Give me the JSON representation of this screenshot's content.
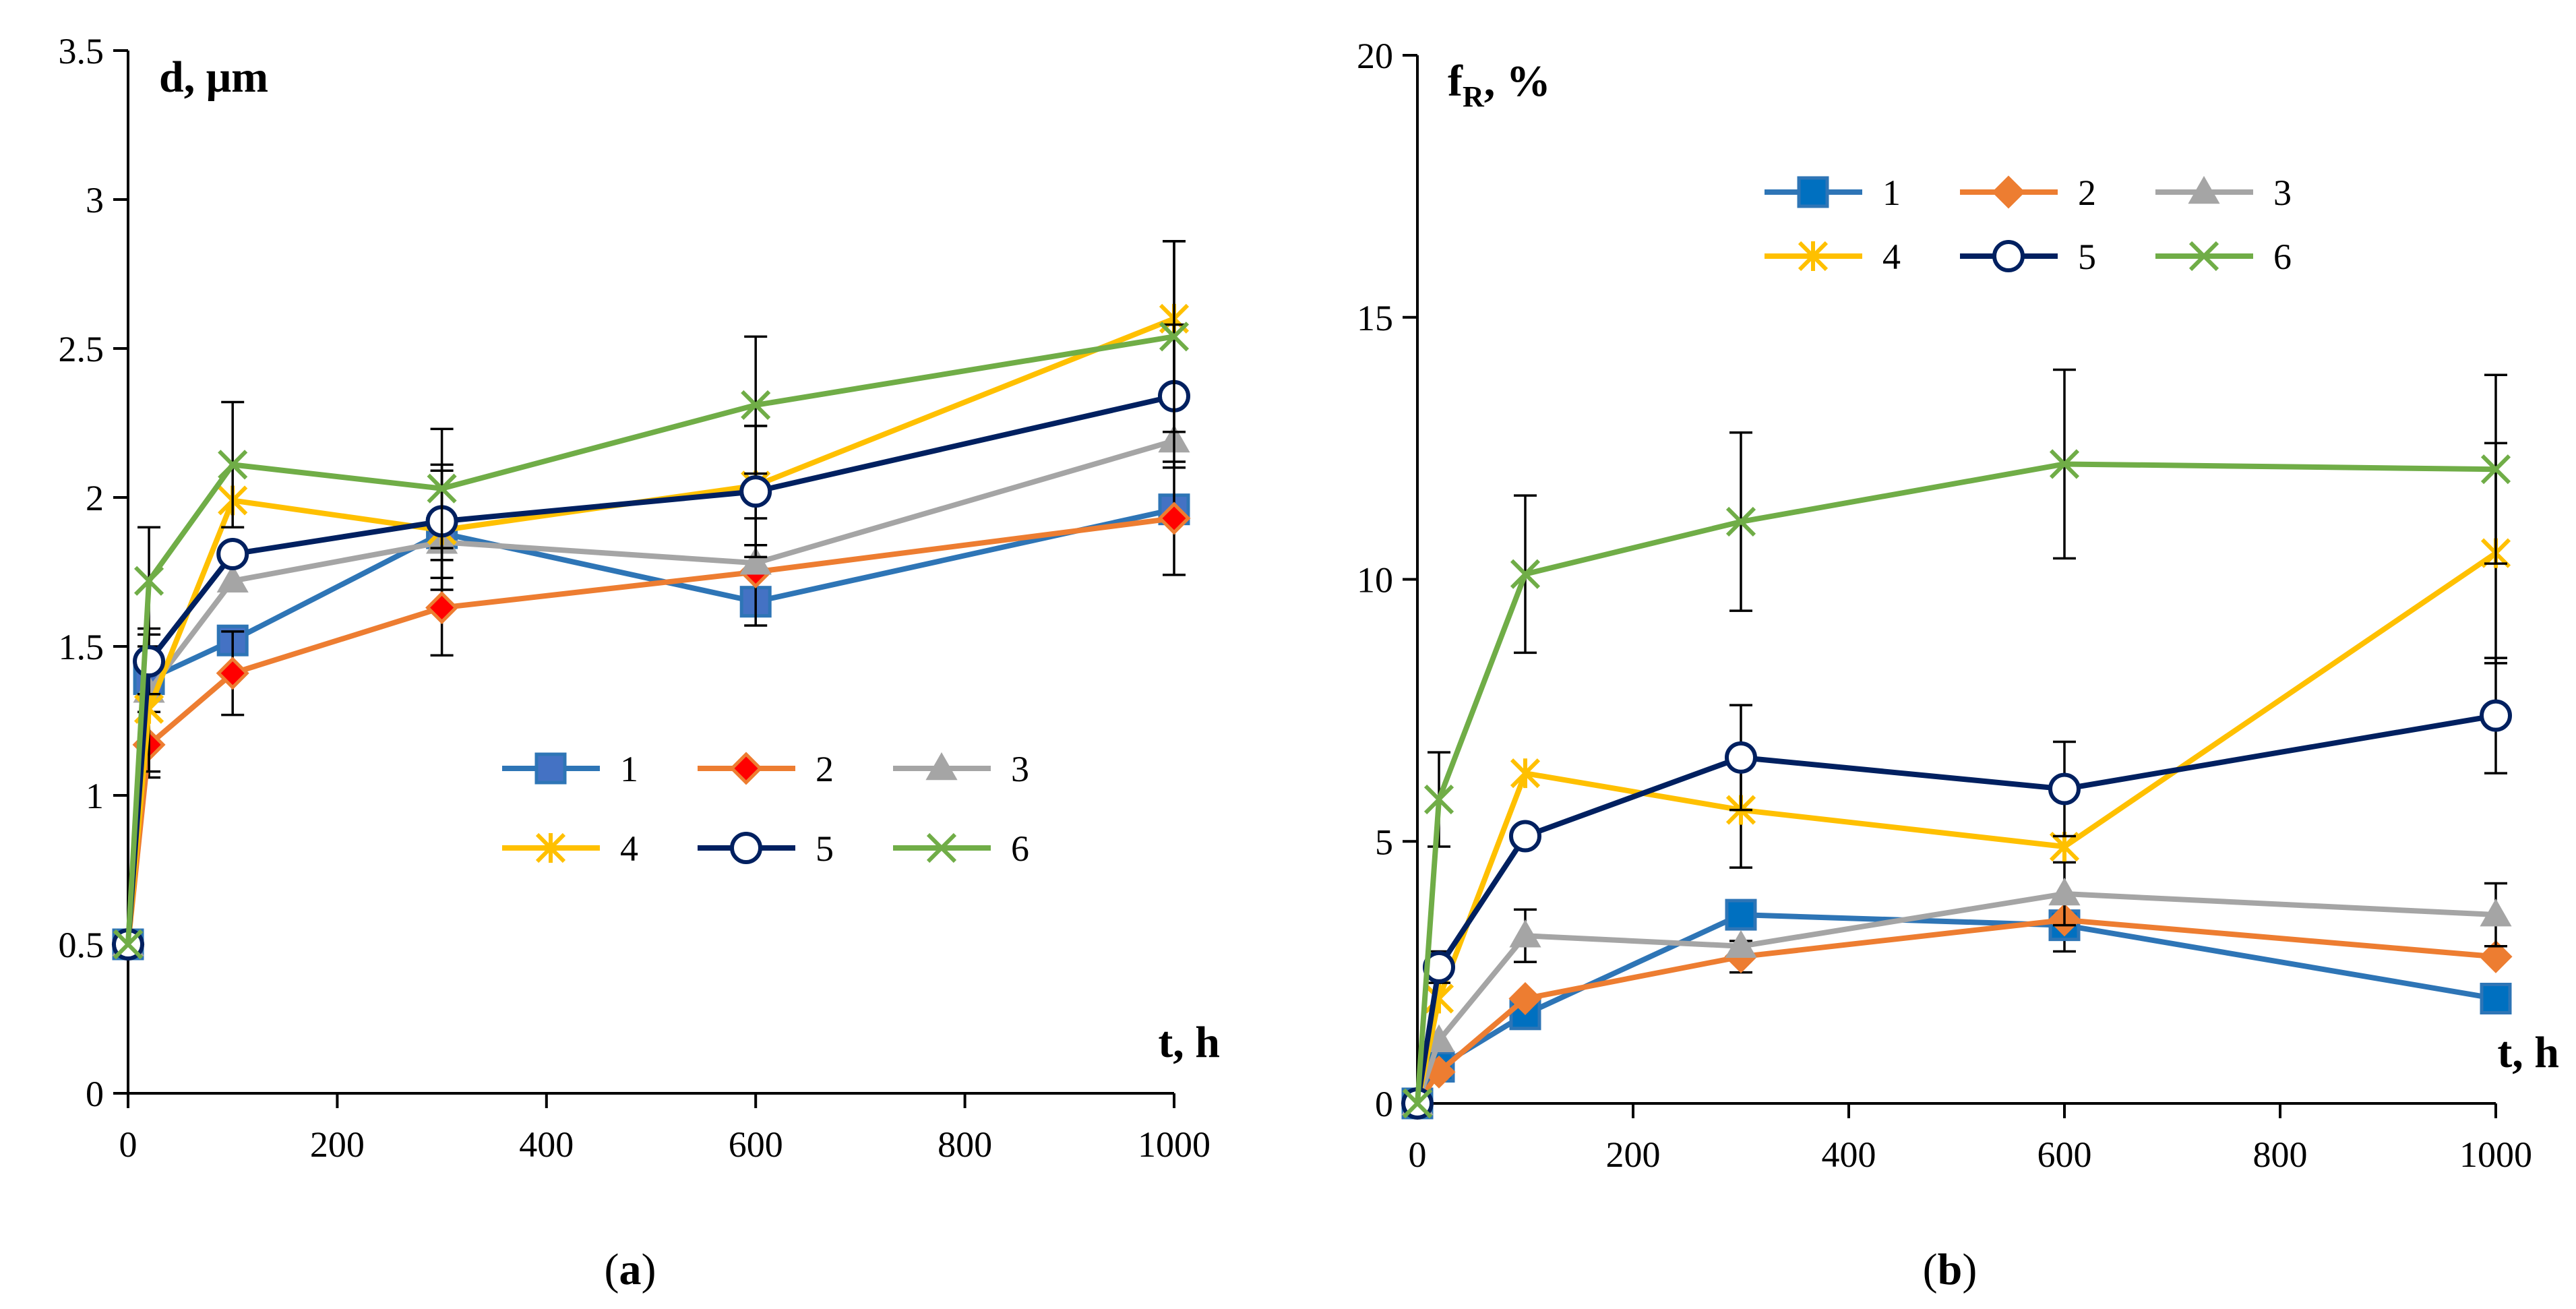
{
  "chart_data": [
    {
      "type": "line",
      "panel_label": "a",
      "ylabel": "d, μm",
      "xlabel": "t, h",
      "xlim": [
        0,
        1000
      ],
      "ylim": [
        0,
        3.5
      ],
      "xticks": [
        "0",
        "200",
        "400",
        "600",
        "800",
        "1000"
      ],
      "yticks": [
        "0",
        "0.5",
        "1",
        "1.5",
        "2",
        "2.5",
        "3",
        "3.5"
      ],
      "legend_position": "center-right",
      "x": [
        0,
        20,
        100,
        300,
        600,
        1000
      ],
      "series": [
        {
          "name": "1",
          "color": "#2e75b6",
          "fill": "#4472c4",
          "marker": "square",
          "values": [
            0.5,
            1.39,
            1.52,
            1.88,
            1.65,
            1.96
          ],
          "errors": [
            0,
            0,
            0,
            0,
            0,
            0
          ]
        },
        {
          "name": "2",
          "color": "#ed7d31",
          "fill": "#ff0000",
          "marker": "diamond",
          "values": [
            0.5,
            1.17,
            1.41,
            1.63,
            1.75,
            1.93
          ],
          "errors": [
            0,
            0.11,
            0.14,
            0.16,
            0.18,
            0.19
          ]
        },
        {
          "name": "3",
          "color": "#a5a5a5",
          "fill": "#a5a5a5",
          "marker": "triangle",
          "values": [
            0.5,
            1.35,
            1.72,
            1.85,
            1.78,
            2.19
          ],
          "errors": [
            0,
            0,
            0,
            0,
            0,
            0
          ]
        },
        {
          "name": "4",
          "color": "#ffc000",
          "fill": "#ffc000",
          "marker": "star",
          "values": [
            0.5,
            1.29,
            1.99,
            1.89,
            2.04,
            2.6
          ],
          "errors": [
            0,
            0.21,
            0,
            0.2,
            0.2,
            0.26
          ]
        },
        {
          "name": "5",
          "color": "#002060",
          "fill": "#ffffff",
          "marker": "circle",
          "values": [
            0.5,
            1.45,
            1.81,
            1.92,
            2.02,
            2.34
          ],
          "errors": [
            0,
            0.11,
            0,
            0.19,
            0.22,
            0.24
          ]
        },
        {
          "name": "6",
          "color": "#70ad47",
          "fill": "#70ad47",
          "marker": "x",
          "values": [
            0.5,
            1.72,
            2.11,
            2.03,
            2.31,
            2.54
          ],
          "errors": [
            0,
            0.18,
            0.21,
            0.2,
            0.23,
            0.32
          ]
        }
      ]
    },
    {
      "type": "line",
      "panel_label": "b",
      "ylabel_main": "f",
      "ylabel_sub": "R",
      "ylabel_rest": ", %",
      "xlabel": "t, h",
      "xlim": [
        0,
        1000
      ],
      "ylim": [
        0,
        20
      ],
      "xticks": [
        "0",
        "200",
        "400",
        "600",
        "800",
        "1000"
      ],
      "yticks": [
        "0",
        "5",
        "10",
        "15",
        "20"
      ],
      "legend_position": "top-center",
      "x": [
        0,
        20,
        100,
        300,
        600,
        1000
      ],
      "series": [
        {
          "name": "1",
          "color": "#2e75b6",
          "fill": "#0070c0",
          "marker": "square",
          "values": [
            0,
            0.7,
            1.7,
            3.6,
            3.4,
            2.0
          ],
          "errors": [
            0,
            0,
            0,
            0,
            0.5,
            0
          ]
        },
        {
          "name": "2",
          "color": "#ed7d31",
          "fill": "#ed7d31",
          "marker": "diamond",
          "values": [
            0,
            0.6,
            2.0,
            2.8,
            3.5,
            2.8
          ],
          "errors": [
            0,
            0,
            0,
            0.3,
            0,
            0
          ]
        },
        {
          "name": "3",
          "color": "#a5a5a5",
          "fill": "#a5a5a5",
          "marker": "triangle",
          "values": [
            0,
            1.2,
            3.2,
            3.0,
            4.0,
            3.6
          ],
          "errors": [
            0,
            0,
            0.5,
            0,
            0.6,
            0.6
          ]
        },
        {
          "name": "4",
          "color": "#ffc000",
          "fill": "#ffc000",
          "marker": "star",
          "values": [
            0,
            2.0,
            6.3,
            5.6,
            4.9,
            10.5
          ],
          "errors": [
            0,
            0,
            0,
            1.1,
            0,
            2.1
          ]
        },
        {
          "name": "5",
          "color": "#002060",
          "fill": "#ffffff",
          "marker": "circle",
          "values": [
            0,
            2.6,
            5.1,
            6.6,
            6.0,
            7.4
          ],
          "errors": [
            0,
            0.3,
            0,
            1.0,
            0.9,
            1.1
          ]
        },
        {
          "name": "6",
          "color": "#70ad47",
          "fill": "#70ad47",
          "marker": "x",
          "values": [
            0,
            5.8,
            10.1,
            11.1,
            12.2,
            12.1
          ],
          "errors": [
            0,
            0.9,
            1.5,
            1.7,
            1.8,
            1.8
          ]
        }
      ]
    }
  ]
}
